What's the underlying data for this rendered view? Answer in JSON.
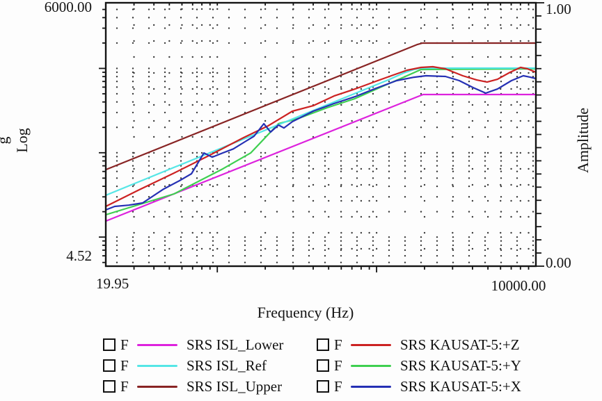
{
  "figure": {
    "background": "#fdfdfd",
    "frame_color": "#141414",
    "grid_dot_color": "#3a3a3a"
  },
  "chart_data": {
    "type": "line",
    "x_axis": {
      "label": "Frequency (Hz)",
      "scale": "log",
      "min": 19.95,
      "max": 10000,
      "tick_labels": [
        "19.95",
        "10000.00"
      ]
    },
    "y_axis_left": {
      "label": "Log g",
      "label_lines": [
        "g",
        "Log"
      ],
      "scale": "log",
      "min": 4.52,
      "max": 6000,
      "tick_labels": [
        "6000.00",
        "4.52"
      ]
    },
    "y_axis_right": {
      "label": "Amplitude",
      "scale": "linear",
      "min": 0,
      "max": 1,
      "tick_step": 0.05,
      "tick_labels": [
        "1.00",
        "0.00"
      ]
    },
    "grid": "dotted-log",
    "legend_position": "bottom",
    "series": [
      {
        "name": "SRS ISL_Lower",
        "color": "#DD22DD",
        "points": [
          [
            19.95,
            15.5
          ],
          [
            1808,
            462
          ],
          [
            1959,
            490
          ],
          [
            10000,
            490
          ]
        ]
      },
      {
        "name": "SRS ISL_Upper",
        "color": "#882424",
        "points": [
          [
            19.95,
            63.1
          ],
          [
            1808,
            1924
          ],
          [
            1940,
            1995
          ],
          [
            10000,
            1995
          ]
        ]
      },
      {
        "name": "SRS KAUSAT-5:+Y",
        "color": "#3ECF50",
        "points": [
          [
            19.95,
            18.4
          ],
          [
            53.5,
            32.5
          ],
          [
            108,
            64.3
          ],
          [
            162,
            99.5
          ],
          [
            242,
            221
          ],
          [
            327,
            257
          ],
          [
            489,
            342
          ],
          [
            731,
            438
          ],
          [
            1093,
            615
          ],
          [
            1479,
            787
          ],
          [
            1901,
            971
          ],
          [
            10000,
            989
          ]
        ]
      },
      {
        "name": "SRS ISL_Ref",
        "color": "#55E6E6",
        "points": [
          [
            19.95,
            31.3
          ],
          [
            1208,
            743
          ],
          [
            1479,
            883
          ],
          [
            1720,
            971
          ],
          [
            1901,
            1009
          ],
          [
            10000,
            1009
          ]
        ]
      },
      {
        "name": "SRS KAUSAT-5:+Z",
        "color": "#CC2222",
        "points": [
          [
            19.95,
            23.1
          ],
          [
            32.3,
            36.4
          ],
          [
            53.5,
            57.4
          ],
          [
            88.4,
            92.3
          ],
          [
            146,
            151
          ],
          [
            208,
            208
          ],
          [
            296,
            311
          ],
          [
            400,
            361
          ],
          [
            541,
            471
          ],
          [
            731,
            570
          ],
          [
            989,
            703
          ],
          [
            1271,
            834
          ],
          [
            1555,
            953
          ],
          [
            1901,
            1028
          ],
          [
            2254,
            1047
          ],
          [
            2704,
            989
          ],
          [
            3475,
            818
          ],
          [
            4256,
            729
          ],
          [
            4940,
            689
          ],
          [
            5740,
            743
          ],
          [
            6888,
            900
          ],
          [
            8017,
            1028
          ],
          [
            8861,
            989
          ],
          [
            10000,
            900
          ]
        ]
      },
      {
        "name": "SRS KAUSAT-5:+X",
        "color": "#2530B4",
        "points": [
          [
            19.95,
            21
          ],
          [
            22.7,
            23.1
          ],
          [
            27.8,
            23.9
          ],
          [
            34,
            25.4
          ],
          [
            46,
            37.1
          ],
          [
            57.9,
            46.6
          ],
          [
            68.8,
            56.4
          ],
          [
            82.4,
            99.5
          ],
          [
            93,
            88.8
          ],
          [
            108,
            99.5
          ],
          [
            126,
            111
          ],
          [
            149,
            135
          ],
          [
            170,
            157
          ],
          [
            196,
            221
          ],
          [
            216,
            176
          ],
          [
            242,
            213
          ],
          [
            262,
            197
          ],
          [
            296,
            234
          ],
          [
            400,
            311
          ],
          [
            541,
            383
          ],
          [
            731,
            462
          ],
          [
            989,
            581
          ],
          [
            1337,
            716
          ],
          [
            1720,
            787
          ],
          [
            2040,
            818
          ],
          [
            2704,
            803
          ],
          [
            3304,
            716
          ],
          [
            4043,
            592
          ],
          [
            4843,
            509
          ],
          [
            5740,
            570
          ],
          [
            7027,
            716
          ],
          [
            8337,
            818
          ],
          [
            9226,
            787
          ],
          [
            10000,
            757
          ]
        ]
      }
    ]
  },
  "legend": {
    "columns": [
      {
        "items": [
          {
            "checkbox_label": "F",
            "label": "SRS ISL_Lower",
            "color": "#DD22DD"
          },
          {
            "checkbox_label": "F",
            "label": "SRS ISL_Ref",
            "color": "#55E6E6"
          },
          {
            "checkbox_label": "F",
            "label": "SRS ISL_Upper",
            "color": "#882424"
          }
        ]
      },
      {
        "items": [
          {
            "checkbox_label": "F",
            "label": "SRS KAUSAT-5:+Z",
            "color": "#CC2222"
          },
          {
            "checkbox_label": "F",
            "label": "SRS KAUSAT-5:+Y",
            "color": "#3ECF50"
          },
          {
            "checkbox_label": "F",
            "label": "SRS KAUSAT-5:+X",
            "color": "#2530B4"
          }
        ]
      }
    ]
  }
}
